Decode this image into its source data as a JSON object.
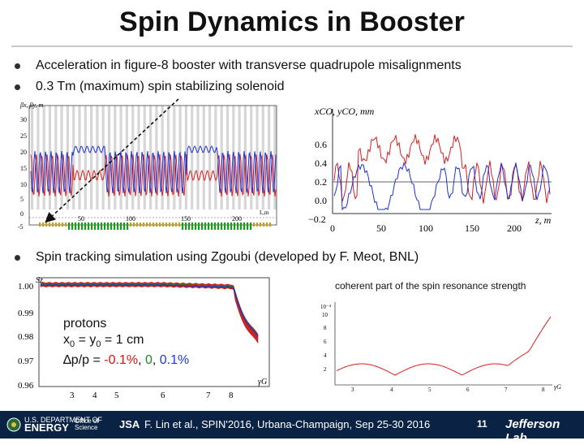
{
  "slide": {
    "title": "Spin Dynamics in Booster",
    "bullets": [
      "Acceleration in figure-8 booster with transverse quadrupole misalignments",
      "0.3 Tm (maximum) spin stabilizing solenoid",
      "Spin tracking simulation using Zgoubi (developed by F. Meot, BNL)"
    ],
    "caption": "coherent part of the spin resonance strength",
    "protons": {
      "line1": "protons",
      "line2_a": "x",
      "line2_s1": "0",
      "line2_b": " = y",
      "line2_s2": "0",
      "line2_c": " = 1 cm",
      "line3_a": "∆p/p = ",
      "line3_v1": "-0.1%",
      "line3_sep1": ", ",
      "line3_v2": "0",
      "line3_sep2": ", ",
      "line3_v3": "0.1%",
      "colors": [
        "#e01010",
        "#1a8a1a",
        "#1a3ad8"
      ]
    }
  },
  "footer": {
    "citation": "F. Lin et al., SPIN'2016, Urbana-Champaign, Sep 25-30 2016",
    "page": "11",
    "lab": "Jefferson Lab",
    "doe_small": "U.S. DEPARTMENT OF",
    "doe_big": "ENERGY",
    "office_1": "Office of",
    "office_2": "Science",
    "jsa": "JSA",
    "background": "#0a2344"
  },
  "chart_data": [
    {
      "type": "line",
      "xlabel": "L,m",
      "ylabel": "βx, βy, m",
      "x_ticks": [
        "50",
        "100",
        "150",
        "200"
      ],
      "y_ticks": [
        "30",
        "25",
        "20",
        "15",
        "10",
        "5",
        "0",
        "-5"
      ],
      "series": [
        {
          "color": "#d42020"
        },
        {
          "color": "#2030d0"
        }
      ]
    },
    {
      "type": "line",
      "xlabel": "z, m",
      "ylabel": "xCO, yCO, mm",
      "x_ticks": [
        "0",
        "50",
        "100",
        "150",
        "200"
      ],
      "y_ticks": [
        "0.6",
        "0.4",
        "0.2",
        "0.0",
        "−0.2"
      ],
      "series": [
        {
          "color": "#d42020"
        },
        {
          "color": "#2030d0"
        }
      ]
    },
    {
      "type": "line",
      "xlabel": "γG",
      "ylabel": "Sz",
      "x_ticks": [
        "3",
        "4",
        "5",
        "6",
        "7",
        "8"
      ],
      "y_ticks": [
        "1.00",
        "0.99",
        "0.98",
        "0.97",
        "0.96"
      ]
    },
    {
      "type": "line",
      "xlabel": "γG",
      "ylabel": "10⁻⁴",
      "x_ticks": [
        "3",
        "4",
        "5",
        "6",
        "7",
        "8"
      ],
      "y_ticks": [
        "10",
        "8",
        "6",
        "4",
        "2"
      ]
    }
  ]
}
